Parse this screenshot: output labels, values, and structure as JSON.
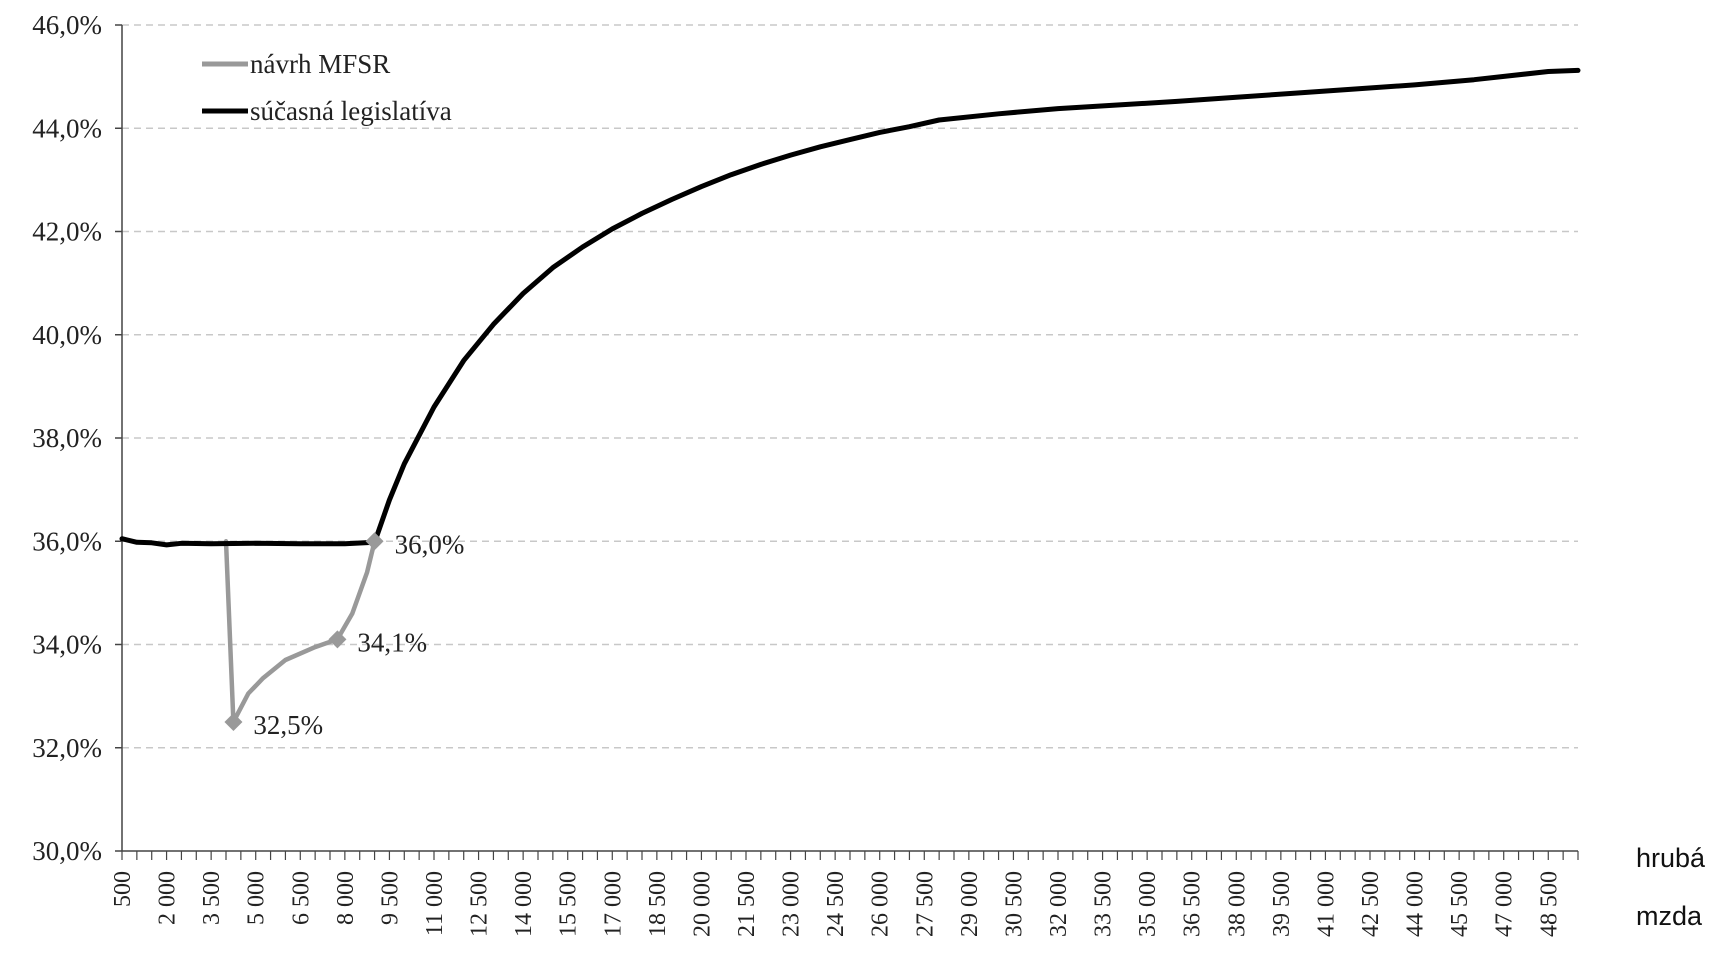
{
  "chart_data": {
    "type": "line",
    "xlabel": [
      "hrubá",
      "mzda"
    ],
    "ylabel": "",
    "ylim": [
      0.3,
      0.46
    ],
    "y_ticks": [
      "30,0%",
      "32,0%",
      "34,0%",
      "36,0%",
      "38,0%",
      "40,0%",
      "42,0%",
      "44,0%",
      "46,0%"
    ],
    "x_ticks": [
      "500",
      "2 000",
      "3 500",
      "5 000",
      "6 500",
      "8 000",
      "9 500",
      "11 000",
      "12 500",
      "14 000",
      "15 500",
      "17 000",
      "18 500",
      "20 000",
      "21 500",
      "23 000",
      "24 500",
      "26 000",
      "27 500",
      "29 000",
      "30 500",
      "32 000",
      "33 500",
      "35 000",
      "36 500",
      "38 000",
      "39 500",
      "41 000",
      "42 500",
      "44 000",
      "45 500",
      "47 000",
      "48 500"
    ],
    "grid": true,
    "legend_position": "top-left",
    "series": [
      {
        "name": "návrh MFSR",
        "color": "#999999",
        "points": [
          [
            4000,
            0.36
          ],
          [
            4250,
            0.325
          ],
          [
            4750,
            0.3305
          ],
          [
            5250,
            0.3335
          ],
          [
            6000,
            0.337
          ],
          [
            7000,
            0.3395
          ],
          [
            7750,
            0.341
          ],
          [
            8250,
            0.346
          ],
          [
            8750,
            0.354
          ],
          [
            9000,
            0.36
          ]
        ]
      },
      {
        "name": "súčasná legislatíva",
        "color": "#000000",
        "points": [
          [
            500,
            0.3605
          ],
          [
            1000,
            0.3598
          ],
          [
            1500,
            0.3597
          ],
          [
            2000,
            0.3593
          ],
          [
            2500,
            0.3596
          ],
          [
            3500,
            0.3595
          ],
          [
            5000,
            0.3596
          ],
          [
            6500,
            0.3595
          ],
          [
            8000,
            0.3595
          ],
          [
            9000,
            0.3598
          ],
          [
            9500,
            0.368
          ],
          [
            10000,
            0.375
          ],
          [
            11000,
            0.386
          ],
          [
            12000,
            0.395
          ],
          [
            13000,
            0.402
          ],
          [
            14000,
            0.408
          ],
          [
            15000,
            0.413
          ],
          [
            16000,
            0.417
          ],
          [
            17000,
            0.4205
          ],
          [
            18000,
            0.4235
          ],
          [
            19000,
            0.4262
          ],
          [
            20000,
            0.4287
          ],
          [
            21000,
            0.431
          ],
          [
            22000,
            0.433
          ],
          [
            23000,
            0.4348
          ],
          [
            24000,
            0.4364
          ],
          [
            25000,
            0.4378
          ],
          [
            26000,
            0.4392
          ],
          [
            27000,
            0.4403
          ],
          [
            28000,
            0.4416
          ],
          [
            30000,
            0.4428
          ],
          [
            32000,
            0.4438
          ],
          [
            34000,
            0.4445
          ],
          [
            36000,
            0.4452
          ],
          [
            38000,
            0.446
          ],
          [
            40000,
            0.4468
          ],
          [
            42000,
            0.4476
          ],
          [
            44000,
            0.4484
          ],
          [
            46000,
            0.4494
          ],
          [
            48500,
            0.451
          ],
          [
            49500,
            0.4512
          ]
        ]
      }
    ],
    "annotations": [
      {
        "x": 4250,
        "y": 0.325,
        "label": "32,5%"
      },
      {
        "x": 7750,
        "y": 0.341,
        "label": "34,1%"
      },
      {
        "x": 9000,
        "y": 0.36,
        "label": "36,0%"
      }
    ]
  }
}
